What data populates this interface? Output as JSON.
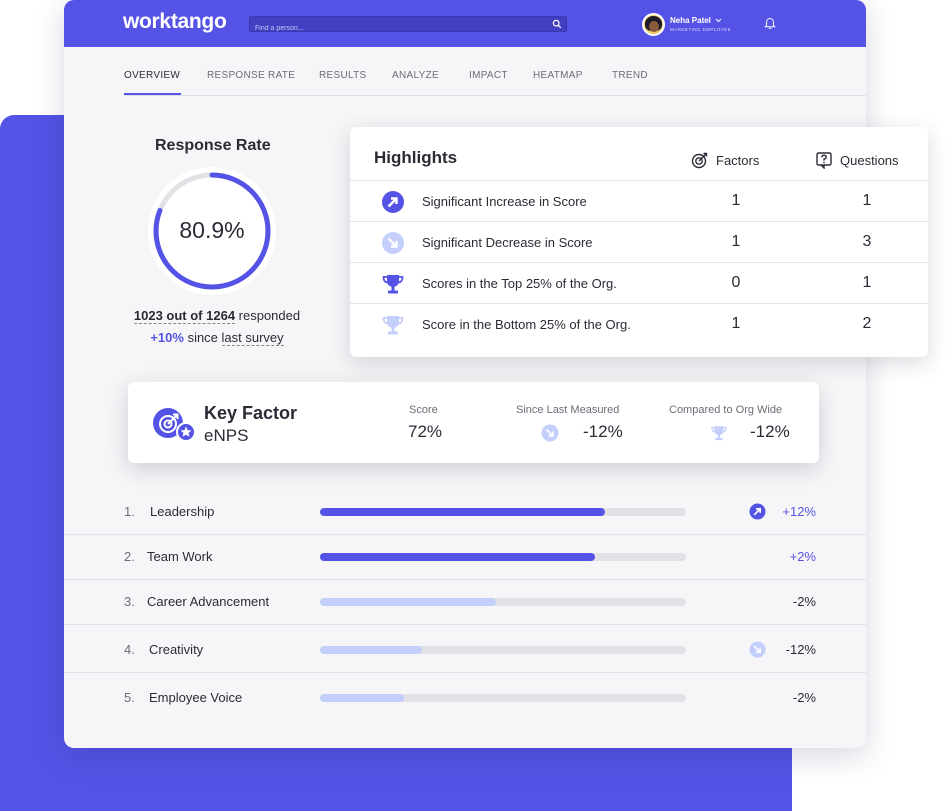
{
  "app": {
    "logo": "worktango",
    "search_placeholder": "Find a person...",
    "user_name": "Neha Patel",
    "user_role": "MARKETING EMPLOYEE"
  },
  "tabs": [
    "OVERVIEW",
    "RESPONSE RATE",
    "RESULTS",
    "ANALYZE",
    "IMPACT",
    "HEATMAP",
    "TREND"
  ],
  "active_tab": "OVERVIEW",
  "response_rate": {
    "title": "Response Rate",
    "value_label": "80.9%",
    "value": 0.809,
    "count_text": "1023 out of 1264",
    "responded_text": " responded",
    "change": "+10%",
    "since_text": " since ",
    "last_survey": "last survey"
  },
  "highlights": {
    "title": "Highlights",
    "col_factors": "Factors",
    "col_questions": "Questions",
    "rows": [
      {
        "label": "Significant Increase in Score",
        "factors": "1",
        "questions": "1",
        "icon": "arrow-up-right-icon"
      },
      {
        "label": "Significant Decrease in Score",
        "factors": "1",
        "questions": "3",
        "icon": "arrow-down-right-icon"
      },
      {
        "label": "Scores in the Top 25% of the Org.",
        "factors": "0",
        "questions": "1",
        "icon": "trophy-icon"
      },
      {
        "label": "Score in the Bottom 25% of the Org.",
        "factors": "1",
        "questions": "2",
        "icon": "trophy-light-icon"
      }
    ]
  },
  "key_factor": {
    "title": "Key Factor",
    "subtitle": "eNPS",
    "score_label": "Score",
    "score_value": "72%",
    "since_label": "Since Last Measured",
    "since_value": "-12%",
    "org_label": "Compared to Org Wide",
    "org_value": "-12%"
  },
  "factors": [
    {
      "num": "1.",
      "name": "Leadership",
      "fill": 0.78,
      "change": "+12%",
      "positive": true,
      "icon": "arrow-up-right-icon"
    },
    {
      "num": "2.",
      "name": "Team Work",
      "fill": 0.75,
      "change": "+2%",
      "positive": true,
      "icon": ""
    },
    {
      "num": "3.",
      "name": "Career Advancement",
      "fill": 0.48,
      "change": "-2%",
      "positive": false,
      "icon": ""
    },
    {
      "num": "4.",
      "name": "Creativity",
      "fill": 0.28,
      "change": "-12%",
      "positive": false,
      "icon": "arrow-down-right-icon"
    },
    {
      "num": "5.",
      "name": "Employee Voice",
      "fill": 0.23,
      "change": "-2%",
      "positive": false,
      "icon": ""
    }
  ],
  "colors": {
    "brand": "#5453e6",
    "bar_strong": "#5453e6",
    "bar_light": "#c4cffb",
    "track": "#e2e2e6"
  }
}
